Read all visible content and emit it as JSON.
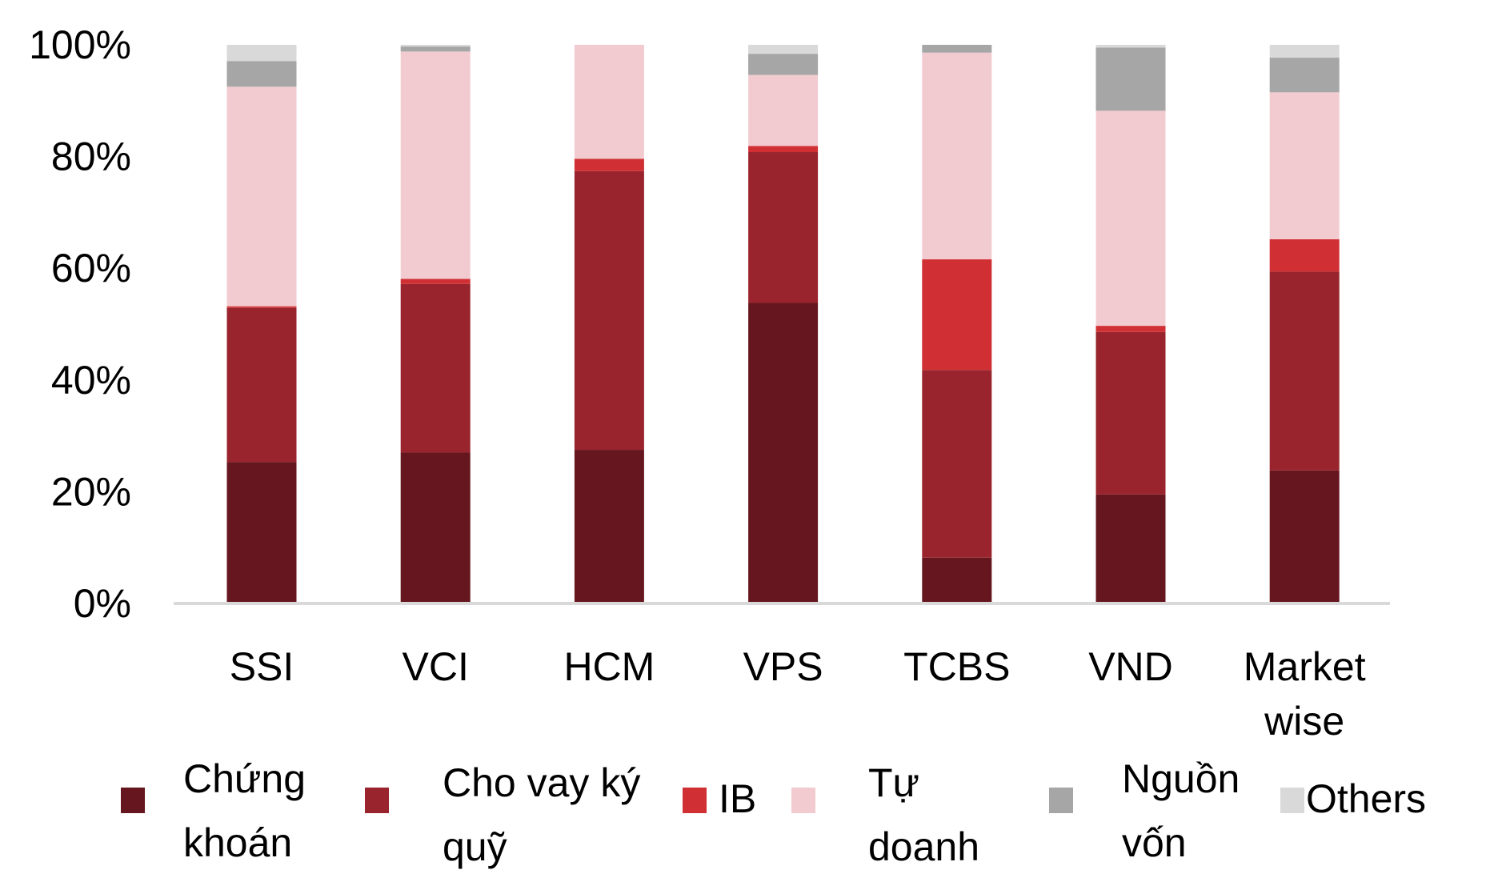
{
  "chart_data": {
    "type": "bar",
    "stacked": true,
    "stack_mode": "percent",
    "title": "",
    "xlabel": "",
    "ylabel": "",
    "ylim": [
      0,
      100
    ],
    "y_ticks": [
      "0%",
      "20%",
      "40%",
      "60%",
      "80%",
      "100%"
    ],
    "y_tick_values": [
      0,
      20,
      40,
      60,
      80,
      100
    ],
    "grid": false,
    "legend_position": "bottom",
    "categories": [
      [
        "SSI"
      ],
      [
        "VCI"
      ],
      [
        "HCM"
      ],
      [
        "VPS"
      ],
      [
        "TCBS"
      ],
      [
        "VND"
      ],
      [
        "Market",
        "wise"
      ]
    ],
    "series": [
      {
        "name": [
          "Chứng",
          "khoán"
        ],
        "color": "#66161e",
        "values": [
          25.3,
          27.0,
          27.5,
          53.8,
          8.2,
          19.5,
          23.8
        ]
      },
      {
        "name": [
          "Cho vay ký",
          "quỹ"
        ],
        "color": "#99242d",
        "values": [
          27.6,
          30.2,
          49.9,
          27.0,
          33.6,
          29.1,
          35.6
        ]
      },
      {
        "name": [
          "IB"
        ],
        "color": "#d03034",
        "values": [
          0.3,
          0.9,
          2.2,
          1.1,
          19.8,
          1.1,
          5.8
        ]
      },
      {
        "name": [
          "Tự",
          "doanh"
        ],
        "color": "#f2cbd0",
        "values": [
          39.3,
          40.7,
          20.4,
          12.7,
          37.0,
          38.5,
          26.3
        ]
      },
      {
        "name": [
          "Nguồn",
          "vốn"
        ],
        "color": "#a6a6a6",
        "values": [
          4.6,
          0.9,
          0.0,
          3.8,
          1.4,
          11.3,
          6.2
        ]
      },
      {
        "name": [
          "Others"
        ],
        "color": "#d9d9d9",
        "values": [
          2.9,
          0.3,
          0.0,
          1.6,
          0.0,
          0.5,
          2.3
        ]
      }
    ]
  }
}
